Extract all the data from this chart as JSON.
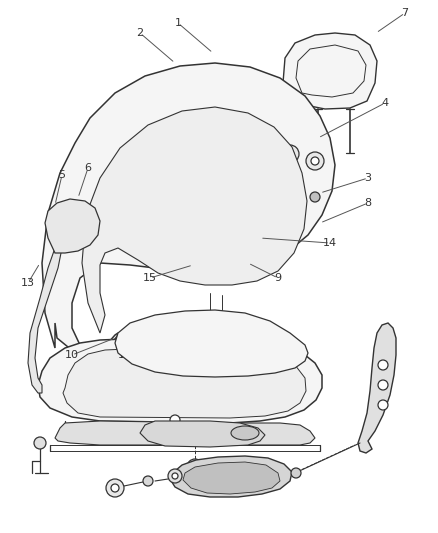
{
  "background_color": "#ffffff",
  "line_color": "#333333",
  "label_color": "#333333",
  "fig_width": 4.38,
  "fig_height": 5.33,
  "dpi": 100
}
